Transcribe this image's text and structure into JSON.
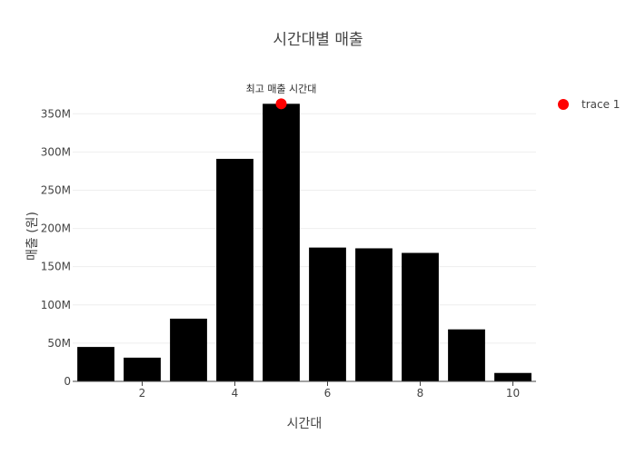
{
  "chart_data": {
    "type": "bar",
    "title": "시간대별 매출",
    "xlabel": "시간대",
    "ylabel": "매출 (원)",
    "x": [
      1,
      2,
      3,
      4,
      5,
      6,
      7,
      8,
      9,
      10
    ],
    "values": [
      45000000,
      31000000,
      82000000,
      291000000,
      363000000,
      175000000,
      174000000,
      168000000,
      68000000,
      11000000
    ],
    "bar_color": "#000000",
    "xlim": [
      0.5,
      10.5
    ],
    "ylim": [
      0,
      380000000
    ],
    "x_ticks": [
      2,
      4,
      6,
      8,
      10
    ],
    "x_tick_labels": [
      "2",
      "4",
      "6",
      "8",
      "10"
    ],
    "y_ticks": [
      0,
      50000000,
      100000000,
      150000000,
      200000000,
      250000000,
      300000000,
      350000000
    ],
    "y_tick_labels": [
      "0",
      "50M",
      "100M",
      "150M",
      "200M",
      "250M",
      "300M",
      "350M"
    ],
    "grid": true,
    "highlight": {
      "x": 5,
      "y": 363000000,
      "color": "#ff0000",
      "label": "최고 매출 시간대"
    },
    "legend": {
      "position": "top-right",
      "entries": [
        {
          "name": "trace 1",
          "color": "#ff0000"
        }
      ]
    }
  }
}
